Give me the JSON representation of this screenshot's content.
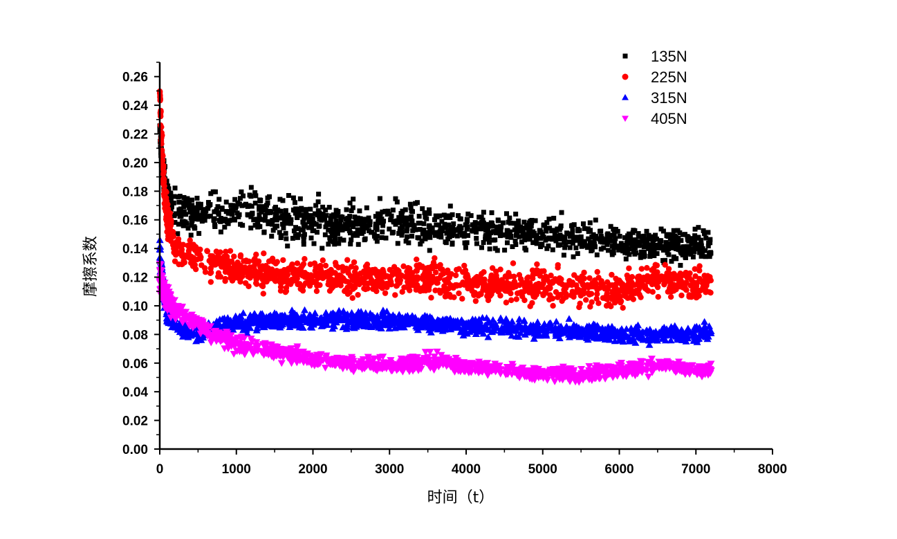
{
  "chart_data": {
    "type": "scatter",
    "title": "",
    "xlabel": "时间（t）",
    "ylabel": "摩擦系数",
    "xlim": [
      0,
      8000
    ],
    "ylim": [
      0,
      0.27
    ],
    "x_ticks": [
      0,
      1000,
      2000,
      3000,
      4000,
      5000,
      6000,
      7000,
      8000
    ],
    "x_tick_labels": [
      "0",
      "1000",
      "2000",
      "3000",
      "4000",
      "5000",
      "6000",
      "7000",
      "8000"
    ],
    "y_ticks": [
      0,
      0.02,
      0.04,
      0.06,
      0.08,
      0.1,
      0.12,
      0.14,
      0.16,
      0.18,
      0.2,
      0.22,
      0.24,
      0.26
    ],
    "y_tick_labels": [
      "0.00",
      "0.02",
      "0.04",
      "0.06",
      "0.08",
      "0.10",
      "0.12",
      "0.14",
      "0.16",
      "0.18",
      "0.20",
      "0.22",
      "0.24",
      "0.26"
    ],
    "grid": false,
    "legend_position": "top-right",
    "series": [
      {
        "name": "135N",
        "marker": "square",
        "color": "#000000",
        "x": [
          0,
          50,
          100,
          150,
          200,
          400,
          600,
          800,
          1000,
          1250,
          1500,
          1750,
          2000,
          2500,
          3000,
          3500,
          4000,
          4500,
          5000,
          5500,
          6000,
          6500,
          7000,
          7200
        ],
        "y": [
          0.22,
          0.19,
          0.175,
          0.17,
          0.165,
          0.165,
          0.165,
          0.165,
          0.165,
          0.165,
          0.16,
          0.16,
          0.158,
          0.156,
          0.158,
          0.155,
          0.153,
          0.152,
          0.15,
          0.148,
          0.145,
          0.143,
          0.142,
          0.142
        ],
        "spread": [
          0.02,
          0.02,
          0.02,
          0.02,
          0.025,
          0.025,
          0.025,
          0.025,
          0.025,
          0.025,
          0.025,
          0.025,
          0.025,
          0.025,
          0.025,
          0.025,
          0.022,
          0.022,
          0.022,
          0.02,
          0.02,
          0.02,
          0.02,
          0.02
        ]
      },
      {
        "name": "225N",
        "marker": "circle",
        "color": "#ff0000",
        "x": [
          0,
          20,
          50,
          100,
          200,
          400,
          600,
          800,
          1000,
          1500,
          2000,
          2500,
          3000,
          3500,
          4000,
          4500,
          5000,
          5500,
          6000,
          6500,
          7000,
          7200
        ],
        "y": [
          0.25,
          0.22,
          0.19,
          0.16,
          0.14,
          0.135,
          0.13,
          0.128,
          0.125,
          0.122,
          0.12,
          0.12,
          0.12,
          0.118,
          0.116,
          0.115,
          0.113,
          0.112,
          0.11,
          0.12,
          0.115,
          0.115
        ],
        "spread": [
          0.01,
          0.02,
          0.02,
          0.02,
          0.02,
          0.02,
          0.02,
          0.02,
          0.02,
          0.02,
          0.02,
          0.02,
          0.02,
          0.02,
          0.02,
          0.02,
          0.02,
          0.02,
          0.02,
          0.02,
          0.02,
          0.02
        ]
      },
      {
        "name": "315N",
        "marker": "triangle-up",
        "color": "#0000ff",
        "x": [
          0,
          50,
          100,
          200,
          300,
          500,
          800,
          1000,
          1500,
          2000,
          2500,
          3000,
          3500,
          4000,
          4500,
          5000,
          5500,
          6000,
          6500,
          7000,
          7200
        ],
        "y": [
          0.14,
          0.11,
          0.095,
          0.085,
          0.082,
          0.082,
          0.085,
          0.088,
          0.09,
          0.09,
          0.09,
          0.09,
          0.088,
          0.086,
          0.085,
          0.083,
          0.082,
          0.08,
          0.08,
          0.08,
          0.082
        ],
        "spread": [
          0.02,
          0.015,
          0.012,
          0.01,
          0.01,
          0.01,
          0.01,
          0.01,
          0.01,
          0.01,
          0.01,
          0.01,
          0.01,
          0.01,
          0.01,
          0.01,
          0.01,
          0.01,
          0.012,
          0.012,
          0.012
        ]
      },
      {
        "name": "405N",
        "marker": "triangle-down",
        "color": "#ff00ff",
        "x": [
          0,
          50,
          100,
          200,
          400,
          600,
          800,
          1000,
          1500,
          2000,
          2500,
          3000,
          3500,
          4000,
          4500,
          5000,
          5500,
          6000,
          6500,
          7000,
          7200
        ],
        "y": [
          0.12,
          0.11,
          0.105,
          0.098,
          0.09,
          0.083,
          0.078,
          0.073,
          0.068,
          0.063,
          0.06,
          0.058,
          0.062,
          0.058,
          0.055,
          0.053,
          0.052,
          0.055,
          0.058,
          0.055,
          0.055
        ],
        "spread": [
          0.02,
          0.015,
          0.015,
          0.012,
          0.01,
          0.01,
          0.01,
          0.01,
          0.01,
          0.01,
          0.008,
          0.008,
          0.01,
          0.008,
          0.008,
          0.008,
          0.008,
          0.01,
          0.01,
          0.008,
          0.008
        ]
      }
    ]
  }
}
